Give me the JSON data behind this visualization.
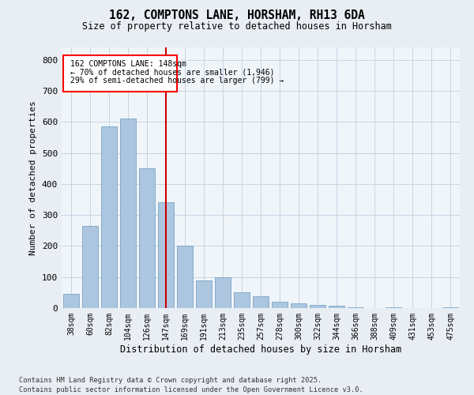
{
  "title": "162, COMPTONS LANE, HORSHAM, RH13 6DA",
  "subtitle": "Size of property relative to detached houses in Horsham",
  "xlabel": "Distribution of detached houses by size in Horsham",
  "ylabel": "Number of detached properties",
  "categories": [
    "38sqm",
    "60sqm",
    "82sqm",
    "104sqm",
    "126sqm",
    "147sqm",
    "169sqm",
    "191sqm",
    "213sqm",
    "235sqm",
    "257sqm",
    "278sqm",
    "300sqm",
    "322sqm",
    "344sqm",
    "366sqm",
    "388sqm",
    "409sqm",
    "431sqm",
    "453sqm",
    "475sqm"
  ],
  "values": [
    45,
    265,
    585,
    610,
    450,
    340,
    200,
    90,
    100,
    50,
    38,
    20,
    15,
    10,
    8,
    2,
    0,
    2,
    0,
    0,
    2
  ],
  "bar_color": "#adc6e0",
  "bar_edge_color": "#6699bb",
  "highlight_index": 5,
  "highlight_color": "#cc0000",
  "annotation_line1": "162 COMPTONS LANE: 148sqm",
  "annotation_line2": "← 70% of detached houses are smaller (1,946)",
  "annotation_line3": "29% of semi-detached houses are larger (799) →",
  "ylim": [
    0,
    840
  ],
  "yticks": [
    0,
    100,
    200,
    300,
    400,
    500,
    600,
    700,
    800
  ],
  "footer_line1": "Contains HM Land Registry data © Crown copyright and database right 2025.",
  "footer_line2": "Contains public sector information licensed under the Open Government Licence v3.0.",
  "bg_color": "#e8eef4",
  "plot_bg_color": "#f0f5fa",
  "grid_color": "#c0d0e0"
}
